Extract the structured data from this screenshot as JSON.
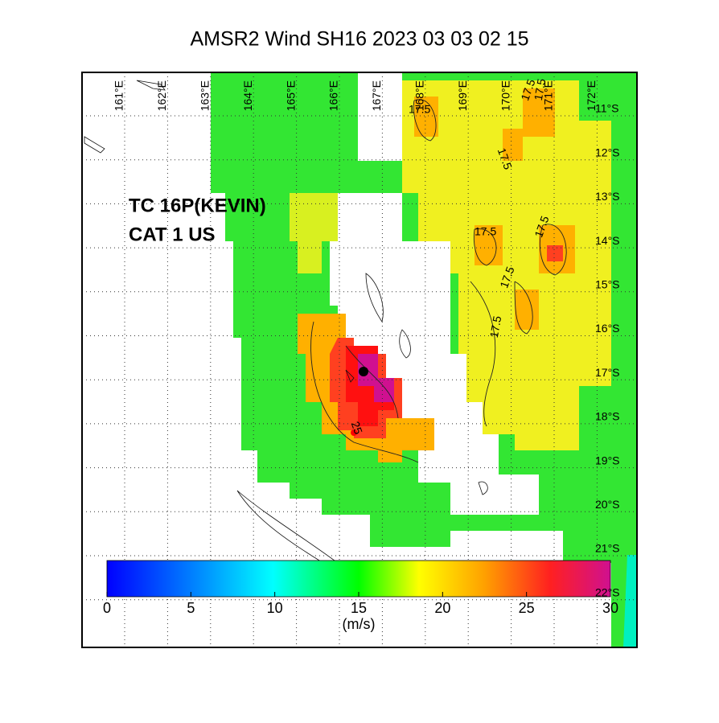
{
  "title": "AMSR2 Wind  SH16  2023 03 03 02 15",
  "annotation": [
    "TC 16P(KEVIN)",
    "CAT 1 US"
  ],
  "lon_labels": [
    "161°E",
    "162°E",
    "163°E",
    "164°E",
    "165°E",
    "166°E",
    "167°E",
    "168°E",
    "169°E",
    "170°E",
    "171°E",
    "172°E"
  ],
  "lat_labels": [
    "11°S",
    "12°S",
    "13°S",
    "14°S",
    "15°S",
    "16°S",
    "17°S",
    "18°S",
    "19°S",
    "20°S",
    "21°S",
    "22°S"
  ],
  "contour_labels": [
    "17.5",
    "17.5",
    "17.5",
    "17.5",
    "17.5",
    "17.5",
    "17.5",
    "17.5",
    "25"
  ],
  "colorbar": {
    "ticks": [
      0,
      5,
      10,
      15,
      20,
      25,
      30
    ],
    "unit": "(m/s)"
  }
}
